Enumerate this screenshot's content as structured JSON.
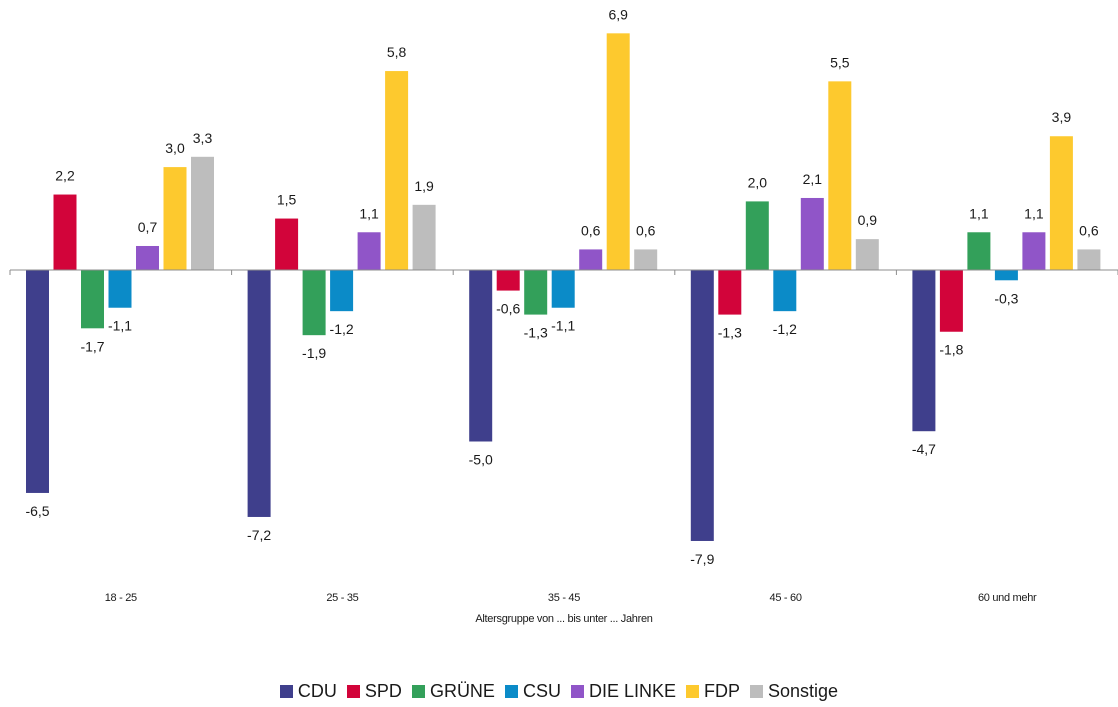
{
  "chart_data": {
    "type": "bar",
    "title": "",
    "xlabel": "Altersgruppe von ... bis unter ... Jahren",
    "ylabel": "",
    "categories": [
      "18 - 25",
      "25 - 35",
      "35 - 45",
      "45 - 60",
      "60 und mehr"
    ],
    "ylim": [
      -9,
      7
    ],
    "grid": false,
    "legend_position": "bottom",
    "series": [
      {
        "name": "CDU",
        "color": "#3f3f8c",
        "values": [
          -6.5,
          -7.2,
          -5.0,
          -7.9,
          -4.7
        ],
        "labels": [
          "-6,5",
          "-7,2",
          "-5,0",
          "-7,9",
          "-4,7"
        ]
      },
      {
        "name": "SPD",
        "color": "#d2043a",
        "values": [
          2.2,
          1.5,
          -0.6,
          -1.3,
          -1.8
        ],
        "labels": [
          "2,2",
          "1,5",
          "-0,6",
          "-1,3",
          "-1,8"
        ]
      },
      {
        "name": "GRÜNE",
        "color": "#33a05a",
        "values": [
          -1.7,
          -1.9,
          -1.3,
          2.0,
          1.1
        ],
        "labels": [
          "-1,7",
          "-1,9",
          "-1,3",
          "2,0",
          "1,1"
        ]
      },
      {
        "name": "CSU",
        "color": "#0b8bc8",
        "values": [
          -1.1,
          -1.2,
          -1.1,
          -1.2,
          -0.3
        ],
        "labels": [
          "-1,1",
          "-1,2",
          "-1,1",
          "-1,2",
          "-0,3"
        ]
      },
      {
        "name": "DIE LINKE",
        "color": "#9055c8",
        "values": [
          0.7,
          1.1,
          0.6,
          2.1,
          1.1
        ],
        "labels": [
          "0,7",
          "1,1",
          "0,6",
          "2,1",
          "1,1"
        ]
      },
      {
        "name": "FDP",
        "color": "#fdc92e",
        "values": [
          3.0,
          5.8,
          6.9,
          5.5,
          3.9
        ],
        "labels": [
          "3,0",
          "5,8",
          "6,9",
          "5,5",
          "3,9"
        ]
      },
      {
        "name": "Sonstige",
        "color": "#bdbdbd",
        "values": [
          3.3,
          1.9,
          0.6,
          0.9,
          0.6
        ],
        "labels": [
          "3,3",
          "1,9",
          "0,6",
          "0,9",
          "0,6"
        ]
      }
    ]
  }
}
